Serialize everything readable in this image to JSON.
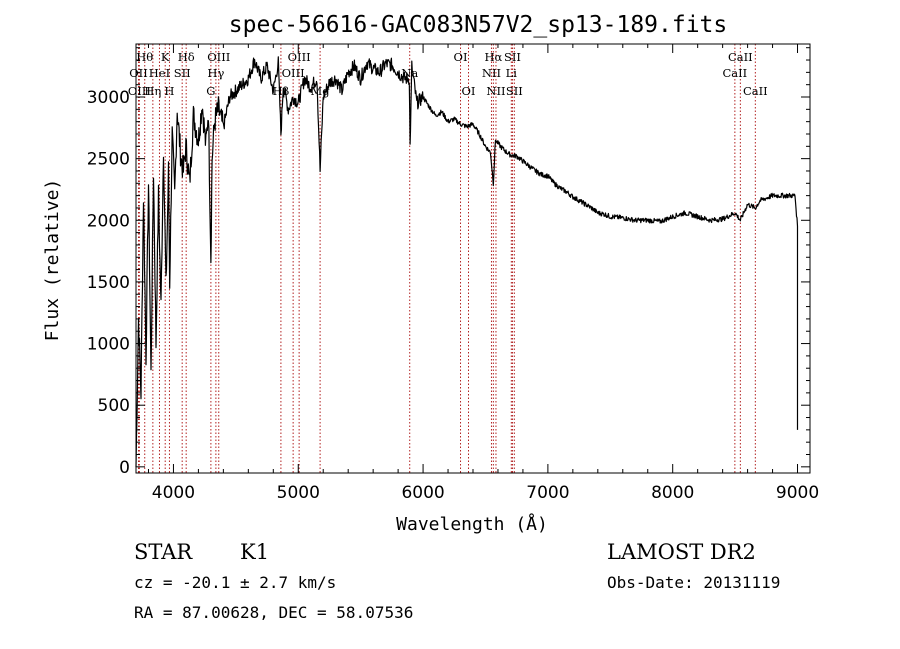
{
  "chart_data": {
    "type": "line",
    "title": "spec-56616-GAC083N57V2_sp13-189.fits",
    "xlabel": "Wavelength (Å)",
    "ylabel": "Flux (relative)",
    "xlim": [
      3700,
      9100
    ],
    "ylim": [
      -50,
      3430
    ],
    "xticks": [
      4000,
      5000,
      6000,
      7000,
      8000,
      9000
    ],
    "xtick_labels": [
      "4000",
      "5000",
      "6000",
      "7000",
      "8000",
      "9000"
    ],
    "yticks": [
      0,
      500,
      1000,
      1500,
      2000,
      2500,
      3000
    ],
    "ytick_labels": [
      "0",
      "500",
      "1000",
      "1500",
      "2000",
      "2500",
      "3000"
    ],
    "series": [
      {
        "name": "spectrum",
        "x": [
          3700,
          3720,
          3740,
          3760,
          3780,
          3800,
          3820,
          3840,
          3860,
          3880,
          3900,
          3920,
          3940,
          3960,
          3970,
          3990,
          4010,
          4030,
          4060,
          4080,
          4100,
          4130,
          4160,
          4200,
          4230,
          4260,
          4280,
          4300,
          4310,
          4330,
          4360,
          4400,
          4450,
          4500,
          4550,
          4600,
          4650,
          4700,
          4750,
          4800,
          4840,
          4861,
          4880,
          4920,
          4960,
          5000,
          5050,
          5100,
          5150,
          5175,
          5200,
          5250,
          5300,
          5350,
          5400,
          5450,
          5500,
          5550,
          5600,
          5650,
          5700,
          5750,
          5800,
          5850,
          5890,
          5896,
          5910,
          5950,
          6000,
          6050,
          6100,
          6150,
          6200,
          6250,
          6300,
          6350,
          6400,
          6450,
          6500,
          6540,
          6563,
          6580,
          6620,
          6660,
          6700,
          6750,
          6800,
          6850,
          6900,
          6950,
          7000,
          7050,
          7100,
          7150,
          7200,
          7250,
          7300,
          7350,
          7400,
          7450,
          7500,
          7600,
          7700,
          7800,
          7900,
          8000,
          8100,
          8200,
          8300,
          8400,
          8500,
          8542,
          8600,
          8662,
          8700,
          8800,
          8900,
          8980,
          9000
        ],
        "y": [
          0,
          1200,
          600,
          2200,
          900,
          2300,
          750,
          2400,
          1000,
          2200,
          1300,
          2600,
          1450,
          2400,
          1500,
          2700,
          2200,
          2900,
          2500,
          2400,
          2600,
          2300,
          2850,
          2650,
          2950,
          2600,
          2900,
          1700,
          2500,
          2800,
          2900,
          2750,
          3000,
          3050,
          3100,
          3150,
          3300,
          3150,
          3250,
          3050,
          3280,
          2700,
          3100,
          2900,
          3000,
          2950,
          3150,
          3080,
          3150,
          2400,
          3000,
          3120,
          3150,
          3050,
          3200,
          3250,
          3150,
          3280,
          3230,
          3200,
          3270,
          3260,
          3200,
          3150,
          3150,
          2600,
          3250,
          2950,
          3000,
          2920,
          2850,
          2880,
          2800,
          2820,
          2780,
          2760,
          2780,
          2700,
          2600,
          2550,
          2300,
          2650,
          2600,
          2560,
          2530,
          2520,
          2480,
          2440,
          2400,
          2370,
          2360,
          2300,
          2260,
          2230,
          2190,
          2160,
          2130,
          2100,
          2060,
          2050,
          2030,
          2020,
          2000,
          2000,
          1990,
          2030,
          2060,
          2030,
          2000,
          2010,
          2060,
          2000,
          2130,
          2100,
          2160,
          2200,
          2200,
          2200,
          1950
        ]
      }
    ],
    "annotations": [
      {
        "wavelength": 3720,
        "text": "OII",
        "row": 2
      },
      {
        "wavelength": 3727,
        "text": "OIII",
        "row": 3
      },
      {
        "wavelength": 3770,
        "text": "Hθ",
        "row": 1
      },
      {
        "wavelength": 3835,
        "text": "Hη",
        "row": 3
      },
      {
        "wavelength": 3888,
        "text": "HeI",
        "row": 2
      },
      {
        "wavelength": 3934,
        "text": "K",
        "row": 1
      },
      {
        "wavelength": 3968,
        "text": "H",
        "row": 3
      },
      {
        "wavelength": 4070,
        "text": "SII",
        "row": 2
      },
      {
        "wavelength": 4102,
        "text": "Hδ",
        "row": 1
      },
      {
        "wavelength": 4300,
        "text": "G",
        "row": 3
      },
      {
        "wavelength": 4340,
        "text": "Hγ",
        "row": 2
      },
      {
        "wavelength": 4363,
        "text": "OIII",
        "row": 1
      },
      {
        "wavelength": 4861,
        "text": "Hβ",
        "row": 3
      },
      {
        "wavelength": 4959,
        "text": "OIII",
        "row": 2
      },
      {
        "wavelength": 5007,
        "text": "OIII",
        "row": 1
      },
      {
        "wavelength": 5175,
        "text": "Mg",
        "row": 3
      },
      {
        "wavelength": 5893,
        "text": "Na",
        "row": 2
      },
      {
        "wavelength": 6300,
        "text": "OI",
        "row": 1
      },
      {
        "wavelength": 6364,
        "text": "OI",
        "row": 3
      },
      {
        "wavelength": 6548,
        "text": "NII",
        "row": 2
      },
      {
        "wavelength": 6563,
        "text": "Hα",
        "row": 1
      },
      {
        "wavelength": 6584,
        "text": "NII",
        "row": 3
      },
      {
        "wavelength": 6707,
        "text": "Li",
        "row": 2
      },
      {
        "wavelength": 6716,
        "text": "SII",
        "row": 1
      },
      {
        "wavelength": 6731,
        "text": "SII",
        "row": 3
      },
      {
        "wavelength": 8498,
        "text": "CaII",
        "row": 2
      },
      {
        "wavelength": 8542,
        "text": "CaII",
        "row": 1
      },
      {
        "wavelength": 8662,
        "text": "CaII",
        "row": 3
      }
    ],
    "line_color": "#000000",
    "marker_color": "#b22222"
  },
  "info": {
    "object_class": "STAR",
    "subclass": "K1",
    "survey": "LAMOST DR2",
    "redshift": "cz = -20.1 ± 2.7 km/s",
    "obs_date": "Obs-Date: 20131119",
    "coords": "RA =  87.00628, DEC =  58.07536"
  }
}
